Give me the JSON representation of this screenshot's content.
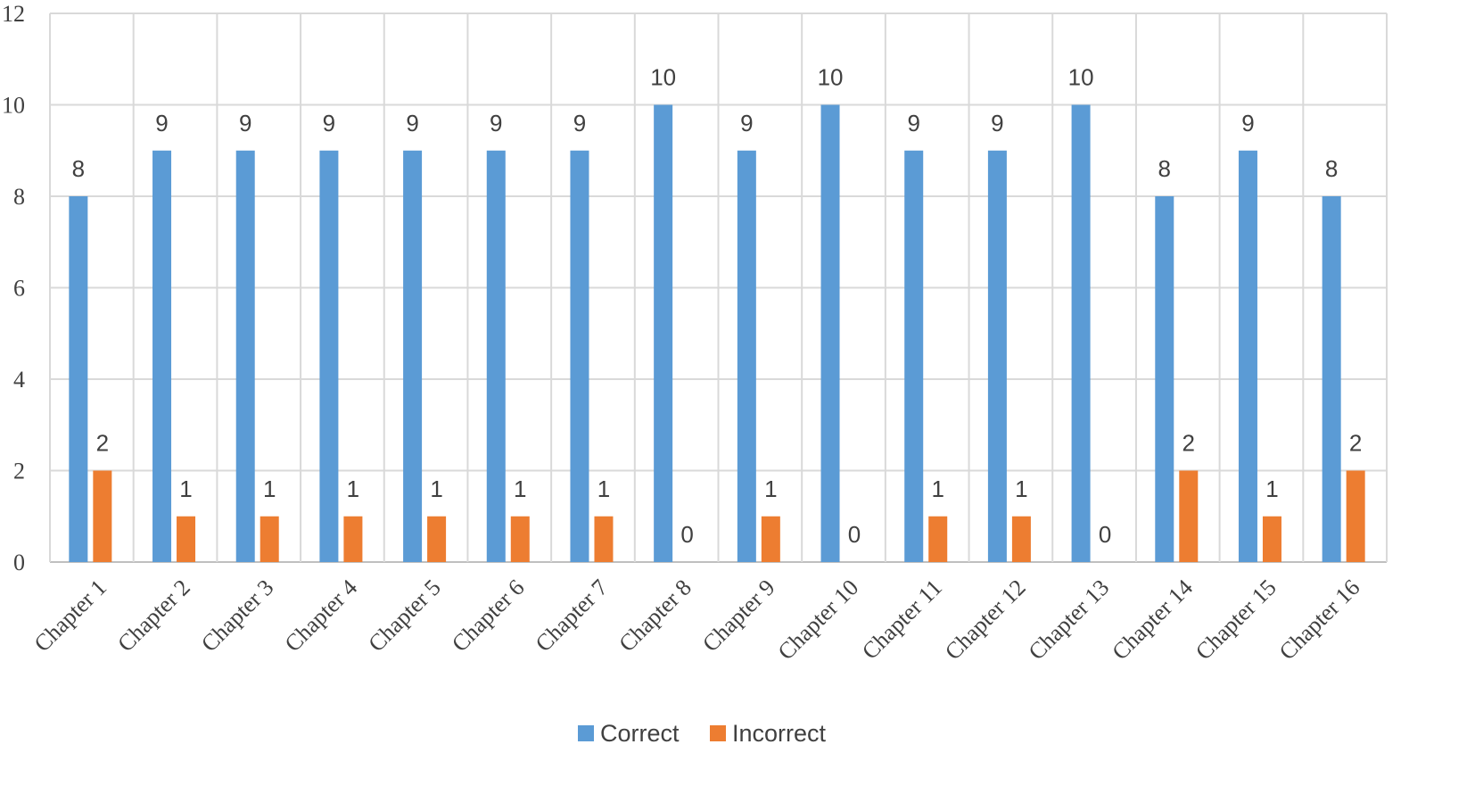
{
  "chart_data": {
    "type": "bar",
    "categories": [
      "Chapter 1",
      "Chapter 2",
      "Chapter 3",
      "Chapter 4",
      "Chapter 5",
      "Chapter 6",
      "Chapter 7",
      "Chapter 8",
      "Chapter 9",
      "Chapter 10",
      "Chapter 11",
      "Chapter 12",
      "Chapter 13",
      "Chapter 14",
      "Chapter 15",
      "Chapter 16"
    ],
    "series": [
      {
        "name": "Correct",
        "color": "#5B9BD5",
        "values": [
          8,
          9,
          9,
          9,
          9,
          9,
          9,
          10,
          9,
          10,
          9,
          9,
          10,
          8,
          9,
          8
        ]
      },
      {
        "name": "Incorrect",
        "color": "#ED7D31",
        "values": [
          2,
          1,
          1,
          1,
          1,
          1,
          1,
          0,
          1,
          0,
          1,
          1,
          0,
          2,
          1,
          2
        ]
      }
    ],
    "ylim": [
      0,
      12
    ],
    "yticks": [
      0,
      2,
      4,
      6,
      8,
      10,
      12
    ],
    "grid": true,
    "gridColor": "#d9d9d9",
    "legend": "bottom",
    "data_labels": true
  }
}
